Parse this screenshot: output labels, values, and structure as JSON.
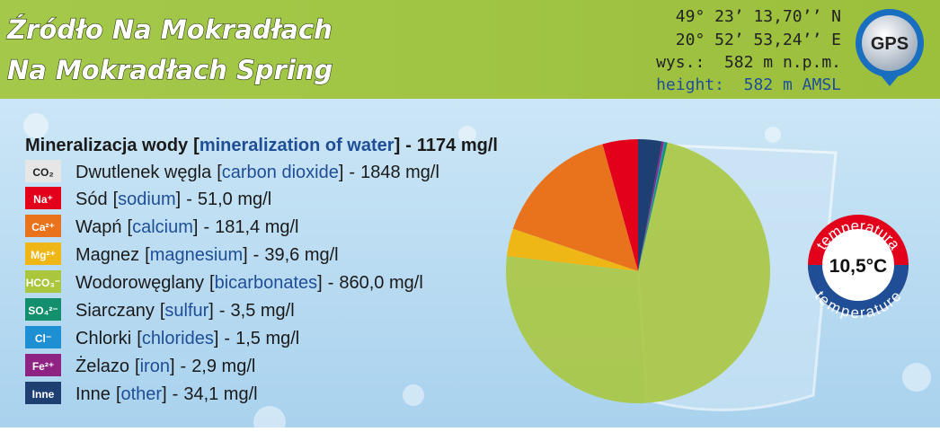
{
  "chart_data": {
    "type": "pie",
    "title": "Źródło Na Mokradłach",
    "subtitle": "Na Mokradłach Spring",
    "heading": "Mineralizacja wody",
    "heading_en": "mineralization of water",
    "total_label": "1174 mg/l",
    "bracket_open": "[",
    "bracket_close": "]",
    "dash": "-",
    "extra": {
      "symbol": "CO₂",
      "name": "Dwutlenek węgla",
      "name_en": "carbon dioxide",
      "value_label": "1848 mg/l",
      "color": "#e6e6e6"
    },
    "categories": [
      "Sód",
      "Wapń",
      "Magnez",
      "Wodorowęglany",
      "Siarczany",
      "Chlorki",
      "Żelazo",
      "Inne"
    ],
    "categories_en": [
      "sodium",
      "calcium",
      "magnesium",
      "bicarbonates",
      "sulfur",
      "chlorides",
      "iron",
      "other"
    ],
    "symbols": [
      "Na⁺",
      "Ca²⁺",
      "Mg²⁺",
      "HCO₃⁻",
      "SO₄²⁻",
      "Cl⁻",
      "Fe²⁺",
      "Inne"
    ],
    "values": [
      51.0,
      181.4,
      39.6,
      860.0,
      3.5,
      1.5,
      2.9,
      34.1
    ],
    "value_labels": [
      "51,0 mg/l",
      "181,4 mg/l",
      "39,6 mg/l",
      "860,0 mg/l",
      "3,5 mg/l",
      "1,5 mg/l",
      "2,9 mg/l",
      "34,1 mg/l"
    ],
    "colors": [
      "#e2001a",
      "#e8731c",
      "#efb716",
      "#a9c63c",
      "#12906e",
      "#1e8fd2",
      "#8e2383",
      "#1d3f72"
    ]
  },
  "location": {
    "lat": "49° 23’ 13,70’’ N",
    "lon": "20° 52’ 53,24’’ E",
    "elevation": "wys.:  582 m n.p.m.",
    "height": "height:  582 m AMSL",
    "gps": "GPS"
  },
  "temperature": {
    "value": "10,5°C",
    "label_pl": "temperatura",
    "label_en": "temperature"
  }
}
